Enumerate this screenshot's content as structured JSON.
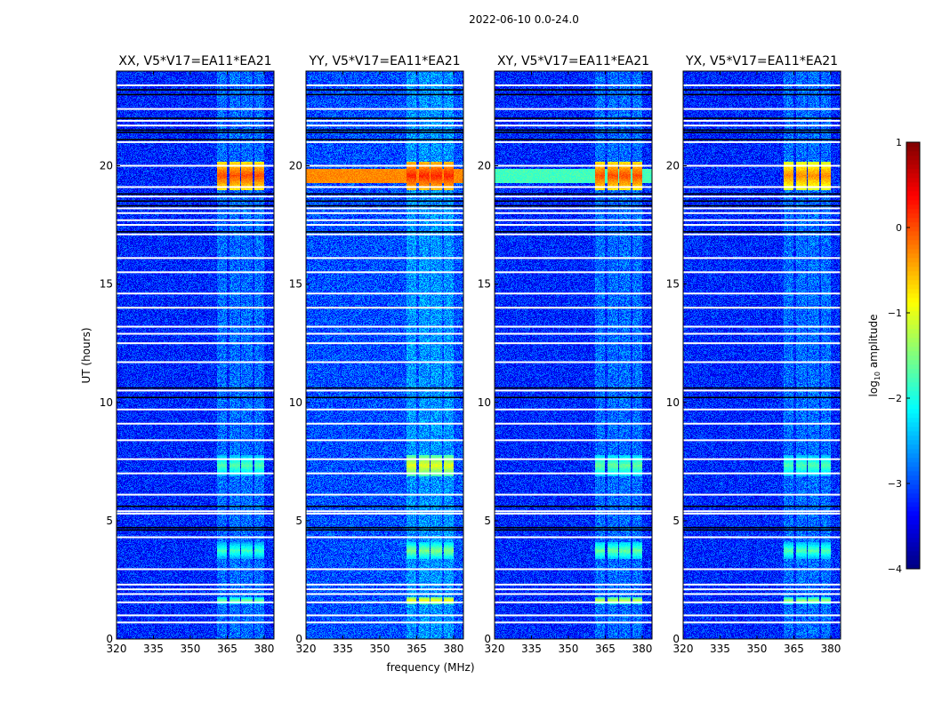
{
  "chart_data": {
    "type": "heatmap",
    "title": "2022-06-10 0.0-24.0",
    "xlabel": "frequency (MHz)",
    "ylabel": "UT (hours)",
    "xlim": [
      320,
      384
    ],
    "ylim": [
      0,
      24
    ],
    "xticks": [
      320,
      335,
      350,
      365,
      380
    ],
    "yticks": [
      0,
      5,
      10,
      15,
      20
    ],
    "panels": [
      {
        "title": "XX, V5*V17=EA11*EA21",
        "base": -3.2,
        "band": null,
        "features": [
          {
            "t": [
              19.0,
              20.2
            ],
            "amp": 0.0
          },
          {
            "t": [
              6.9,
              7.8
            ],
            "amp": -1.7
          },
          {
            "t": [
              3.4,
              4.1
            ],
            "amp": -1.8
          },
          {
            "t": [
              1.5,
              1.8
            ],
            "amp": -1.6
          }
        ]
      },
      {
        "title": "YY, V5*V17=EA11*EA21",
        "base": -3.0,
        "band": {
          "t": [
            19.3,
            19.9
          ],
          "amp": -0.3
        },
        "features": [
          {
            "t": [
              19.0,
              20.2
            ],
            "amp": 0.2
          },
          {
            "t": [
              6.9,
              7.8
            ],
            "amp": -1.0
          },
          {
            "t": [
              3.4,
              4.1
            ],
            "amp": -1.5
          },
          {
            "t": [
              1.5,
              1.8
            ],
            "amp": -0.9
          }
        ]
      },
      {
        "title": "XY, V5*V17=EA11*EA21",
        "base": -3.2,
        "band": {
          "t": [
            19.3,
            19.9
          ],
          "amp": -1.8
        },
        "features": [
          {
            "t": [
              19.0,
              20.2
            ],
            "amp": 0.0
          },
          {
            "t": [
              6.9,
              7.8
            ],
            "amp": -1.6
          },
          {
            "t": [
              3.4,
              4.1
            ],
            "amp": -1.6
          },
          {
            "t": [
              1.5,
              1.8
            ],
            "amp": -1.2
          }
        ]
      },
      {
        "title": "YX, V5*V17=EA11*EA21",
        "base": -3.2,
        "band": null,
        "features": [
          {
            "t": [
              19.0,
              20.2
            ],
            "amp": -0.3
          },
          {
            "t": [
              6.9,
              7.8
            ],
            "amp": -1.7
          },
          {
            "t": [
              3.4,
              4.1
            ],
            "amp": -1.7
          },
          {
            "t": [
              1.5,
              1.8
            ],
            "amp": -1.4
          }
        ]
      }
    ],
    "channels_mhz": [
      [
        360.5,
        364.8
      ],
      [
        365.6,
        369.9
      ],
      [
        370.6,
        375.0
      ],
      [
        375.7,
        380.0
      ]
    ],
    "flagged_times": [
      23.4,
      22.4,
      21.9,
      21.7,
      21.0,
      20.0,
      19.1,
      18.7,
      18.2,
      18.0,
      17.7,
      17.5,
      17.1,
      16.1,
      15.5,
      14.6,
      14.0,
      13.2,
      12.9,
      12.5,
      11.7,
      10.5,
      9.7,
      9.1,
      8.4,
      7.6,
      7.0,
      6.1,
      5.4,
      5.3,
      4.3,
      2.95,
      2.3,
      2.1,
      1.9,
      1.55,
      1.0,
      0.7
    ],
    "gap_times": [
      23.2,
      23.0,
      22.0,
      21.5,
      21.4,
      21.1,
      18.8,
      18.5,
      18.3,
      17.2,
      14.0,
      10.6,
      10.2,
      5.6,
      4.7,
      4.6
    ],
    "colorbar": {
      "label": "log10 amplitude",
      "range": [
        -4,
        1
      ],
      "ticks": [
        1,
        0,
        -1,
        -2,
        -3,
        -4
      ],
      "tick_labels": [
        "1",
        "0",
        "−1",
        "−2",
        "−3",
        "−4"
      ]
    }
  }
}
